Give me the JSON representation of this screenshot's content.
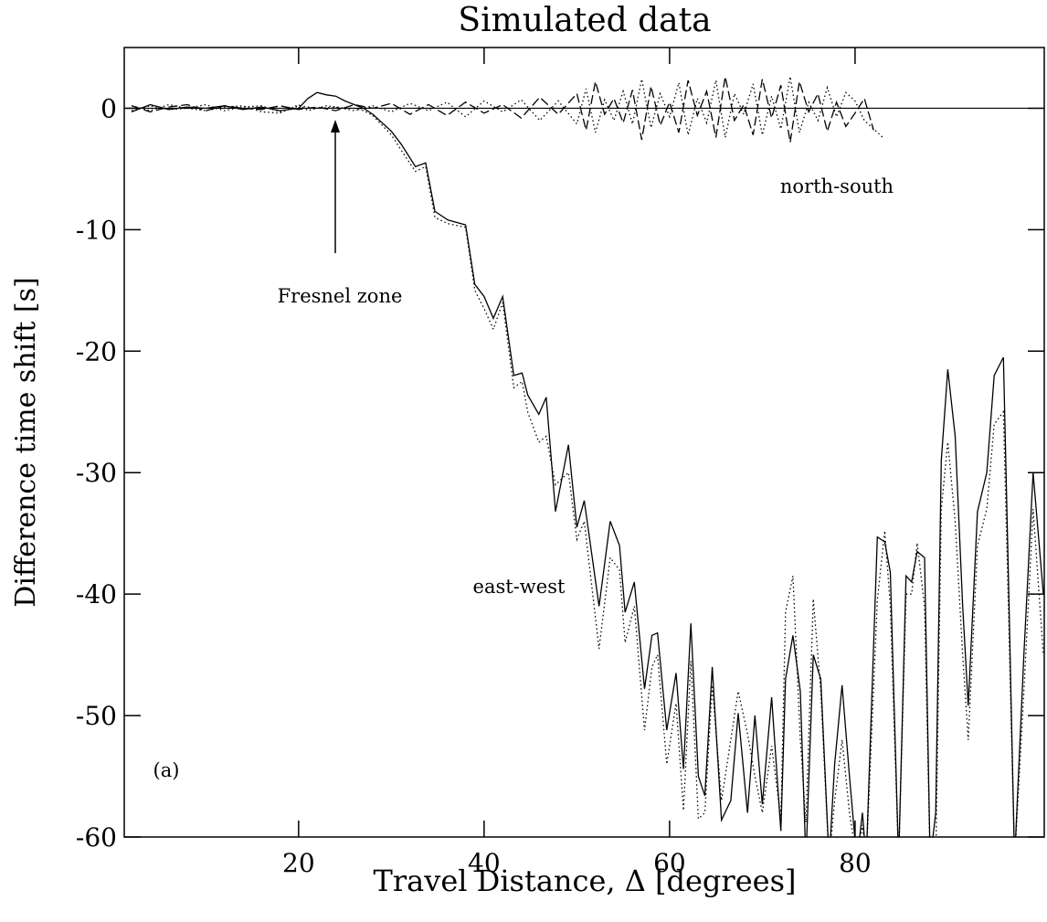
{
  "chart_data": {
    "type": "line",
    "title": "Simulated data",
    "x_label": "Travel Distance, Δ [degrees]",
    "y_label": "Difference time shift [s]",
    "xlim": [
      1.2,
      100.4
    ],
    "ylim": [
      -60,
      5
    ],
    "xticks": [
      20,
      40,
      60,
      80
    ],
    "yticks": [
      -60,
      -50,
      -40,
      -30,
      -20,
      -10,
      0
    ],
    "reference_line": 0,
    "color": "#000000",
    "annotations": {
      "fresnel": "Fresnel zone",
      "north_south": "north-south",
      "east_west": "east-west",
      "panel": "(a)"
    },
    "series": [
      {
        "line_style": "solid",
        "x": [
          2,
          4,
          6,
          8,
          10,
          12,
          14,
          16,
          18,
          20,
          21,
          22,
          23,
          24,
          25,
          26,
          27,
          28,
          29,
          30,
          31.1,
          32.6,
          33.7,
          34.7,
          36.1,
          38,
          39,
          40,
          41,
          42,
          43.2,
          44.1,
          44.7,
          45.9,
          46.7,
          47.7,
          49.1,
          50,
          50.8,
          52.4,
          53.6,
          54.6,
          55.2,
          56.2,
          57.3,
          58.1,
          58.7,
          59.7,
          60.7,
          61.5,
          62.3,
          63.1,
          63.8,
          64.6,
          65.6,
          66.6,
          67.4,
          68.4,
          69.2,
          70,
          71,
          72,
          72.5,
          73.3,
          74.1,
          74.7,
          75.5,
          76.3,
          77.2,
          77.8,
          78.6,
          79.4,
          80.2,
          80.8,
          81.2,
          82.4,
          83.2,
          83.8,
          84.7,
          85.5,
          86.1,
          86.7,
          87.5,
          88.1,
          88.7,
          89.3,
          90,
          90.8,
          91.6,
          92.2,
          93.2,
          94.2,
          95,
          96,
          96.6,
          97.2,
          98.2,
          99.2,
          100.3
        ],
        "values": [
          -0.3,
          0.3,
          -0.1,
          0.1,
          0,
          0.2,
          -0.1,
          0.1,
          -0.2,
          0,
          0.8,
          1.3,
          1.1,
          1.0,
          0.6,
          0.3,
          0,
          -0.5,
          -1.2,
          -1.9,
          -3,
          -4.8,
          -4.5,
          -8.5,
          -9.2,
          -9.6,
          -14.5,
          -15.5,
          -17.3,
          -15.5,
          -22,
          -21.8,
          -23.6,
          -25.2,
          -23.8,
          -33.2,
          -27.7,
          -34.5,
          -32.3,
          -41,
          -34,
          -36,
          -41.5,
          -39,
          -47.8,
          -43.4,
          -43.2,
          -51.2,
          -46.5,
          -54.4,
          -42.4,
          -55,
          -56.6,
          -46,
          -58.6,
          -57,
          -49.8,
          -58,
          -50,
          -57.3,
          -48.5,
          -59.5,
          -47,
          -43.4,
          -48,
          -62,
          -45,
          -47,
          -62,
          -54,
          -47.5,
          -55,
          -62,
          -58,
          -62,
          -35.3,
          -35.7,
          -38.2,
          -62,
          -38.5,
          -39,
          -36.5,
          -37,
          -62,
          -58,
          -29,
          -21.5,
          -27,
          -41,
          -49.2,
          -33.2,
          -30,
          -22,
          -20.5,
          -40.7,
          -62,
          -45,
          -30,
          -40
        ]
      },
      {
        "line_style": "dotted",
        "x": [
          2,
          4,
          6,
          8,
          10,
          12,
          14,
          16,
          18,
          20,
          21,
          22,
          23,
          24,
          25,
          26,
          27,
          28,
          29,
          30,
          31.1,
          32.6,
          33.7,
          34.7,
          36.1,
          38,
          39,
          40,
          41,
          42,
          43.2,
          44.1,
          44.7,
          45.9,
          46.7,
          47.7,
          49.1,
          50,
          50.8,
          52.4,
          53.6,
          54.6,
          55.2,
          56.2,
          57.3,
          58.1,
          58.7,
          59.7,
          60.7,
          61.5,
          62.3,
          63.1,
          63.8,
          64.6,
          65.6,
          66.6,
          67.4,
          68.4,
          69.2,
          70,
          71,
          72,
          72.5,
          73.3,
          74.1,
          74.7,
          75.5,
          76.3,
          77.2,
          77.8,
          78.6,
          79.4,
          80.2,
          80.8,
          81.2,
          82.4,
          83.2,
          83.8,
          84.7,
          85.5,
          86.1,
          86.7,
          87.5,
          88.1,
          88.7,
          89.3,
          90,
          90.8,
          91.6,
          92.2,
          93.2,
          94.2,
          95,
          96,
          96.6,
          97.2,
          98.2,
          99.2,
          100.3
        ],
        "values": [
          0.2,
          -0.2,
          0.3,
          0,
          -0.2,
          0.1,
          0.2,
          -0.3,
          -0.4,
          0.3,
          -0.2,
          0,
          0.2,
          0.1,
          0,
          0,
          -0.2,
          -0.6,
          -1.4,
          -2.2,
          -3.5,
          -5.2,
          -4.8,
          -9,
          -9.5,
          -9.8,
          -15,
          -16.5,
          -18.2,
          -16,
          -23,
          -22.5,
          -25,
          -27.5,
          -27,
          -31,
          -30,
          -35.5,
          -34,
          -44.5,
          -37,
          -38,
          -44,
          -41,
          -51.2,
          -46,
          -45,
          -54,
          -49,
          -57.8,
          -45.5,
          -58.5,
          -58,
          -47.5,
          -57,
          -52,
          -48,
          -51.5,
          -55,
          -58,
          -52.5,
          -58.5,
          -41.5,
          -38.5,
          -52,
          -58.8,
          -40.4,
          -48,
          -62,
          -57,
          -52,
          -58,
          -62,
          -59,
          -62,
          -40.5,
          -34.8,
          -41,
          -62,
          -40,
          -40,
          -35.8,
          -41,
          -62,
          -62,
          -33,
          -27.5,
          -34,
          -45,
          -52,
          -36,
          -33,
          -26,
          -25,
          -43,
          -62,
          -48,
          -33,
          -45
        ]
      },
      {
        "line_style": "dashed",
        "x": [
          2,
          4,
          6,
          8,
          10,
          12,
          14,
          16,
          18,
          20,
          22,
          24,
          26,
          28,
          30,
          32,
          34,
          36,
          38,
          40,
          42,
          44,
          46,
          48,
          50,
          51,
          52,
          53,
          54,
          55,
          56,
          57,
          58,
          59,
          60,
          61,
          62,
          63,
          64,
          65,
          66,
          67,
          68,
          69,
          70,
          71,
          72,
          73,
          74,
          75,
          76,
          77,
          78,
          79,
          80,
          81,
          82
        ],
        "values": [
          0.2,
          -0.3,
          0.1,
          0.3,
          -0.2,
          0.2,
          0,
          -0.1,
          0.2,
          -0.1,
          0.1,
          -0.2,
          0.3,
          0,
          0.4,
          -0.5,
          0.3,
          -0.6,
          0.5,
          -0.4,
          0.3,
          -0.8,
          0.9,
          -0.5,
          1.2,
          -1.8,
          2.2,
          -0.5,
          0.8,
          -1.2,
          1.5,
          -2.6,
          1.8,
          -1.4,
          0.5,
          -2,
          2.3,
          -0.6,
          1.4,
          -2.4,
          2.6,
          -1,
          0.3,
          -2.2,
          2.4,
          -0.8,
          1.9,
          -2.8,
          2.2,
          -0.3,
          1.2,
          -1.9,
          0.5,
          -1.5,
          -0.4,
          0.8,
          -1.8
        ]
      },
      {
        "line_style": "dotted",
        "x": [
          2,
          4,
          6,
          8,
          10,
          12,
          14,
          16,
          18,
          20,
          22,
          24,
          26,
          28,
          30,
          32,
          34,
          36,
          38,
          40,
          42,
          44,
          46,
          48,
          50,
          51,
          52,
          53,
          54,
          55,
          56,
          57,
          58,
          59,
          60,
          61,
          62,
          63,
          64,
          65,
          66,
          67,
          68,
          69,
          70,
          71,
          72,
          73,
          74,
          75,
          76,
          77,
          78,
          79,
          80,
          81,
          83
        ],
        "values": [
          -0.2,
          0.2,
          -0.1,
          0,
          0.3,
          -0.2,
          0.1,
          0.2,
          -0.3,
          0.2,
          0,
          0.1,
          -0.2,
          0.2,
          -0.3,
          0.4,
          -0.2,
          0.5,
          -0.7,
          0.6,
          -0.3,
          0.7,
          -1,
          0.6,
          -1.3,
          1.6,
          -2,
          0.7,
          -1,
          1.4,
          -1.3,
          2.4,
          -1.6,
          1.2,
          -0.7,
          2.1,
          -2.2,
          0.8,
          -1.2,
          2.3,
          -2.4,
          1.2,
          -0.5,
          2,
          -2.2,
          1,
          -1.7,
          2.6,
          -2,
          0.5,
          -1,
          1.7,
          -0.7,
          1.3,
          0.6,
          -1,
          -2.4
        ]
      }
    ]
  }
}
